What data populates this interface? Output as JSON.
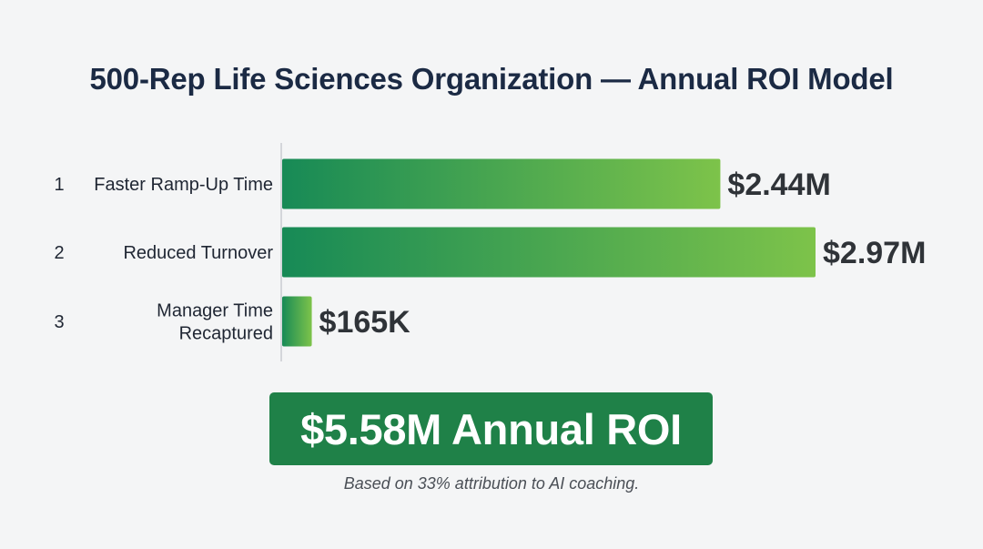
{
  "chart_data": {
    "type": "bar",
    "orientation": "horizontal",
    "title": "500-Rep Life Sciences Organization — Annual ROI Model",
    "categories": [
      "Faster Ramp-Up Time",
      "Reduced Turnover",
      "Manager Time Recaptured"
    ],
    "ranks": [
      "1",
      "2",
      "3"
    ],
    "values": [
      2.44,
      2.97,
      0.165
    ],
    "value_labels": [
      "$2.44M",
      "$2.97M",
      "$165K"
    ],
    "unit": "$M",
    "xlim": [
      0,
      2.97
    ],
    "grid": false,
    "colors": {
      "bar_start": "#178a56",
      "bar_end": "#7dc34a",
      "axis": "#c9ccd0"
    }
  },
  "summary": {
    "total_label": "$5.58M Annual ROI",
    "footnote": "Based on 33% attribution to AI coaching.",
    "box_color": "#1f8148"
  }
}
